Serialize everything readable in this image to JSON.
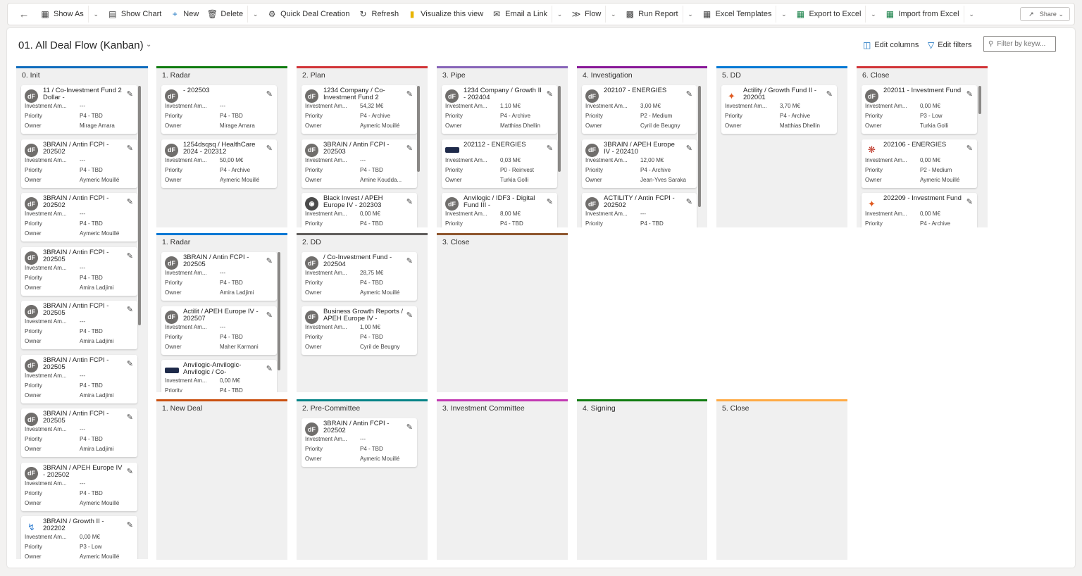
{
  "toolbar": {
    "items": [
      {
        "icon": "show-as-icon",
        "label": "Show As",
        "chevron": true
      },
      {
        "icon": "chart-icon",
        "label": "Show Chart"
      },
      {
        "icon": "plus-icon",
        "label": "New"
      },
      {
        "icon": "delete-icon",
        "label": "Delete",
        "chevron": true
      },
      {
        "icon": "quick-create-icon",
        "label": "Quick Deal Creation"
      },
      {
        "icon": "refresh-icon",
        "label": "Refresh"
      },
      {
        "icon": "powerbi-icon",
        "label": "Visualize this view"
      },
      {
        "icon": "mail-icon",
        "label": "Email a Link",
        "chevron": true
      },
      {
        "icon": "flow-icon",
        "label": "Flow",
        "chevron": true
      },
      {
        "icon": "report-icon",
        "label": "Run Report",
        "chevron": true
      },
      {
        "icon": "excel-template-icon",
        "label": "Excel Templates",
        "chevron": true
      },
      {
        "icon": "excel-export-icon",
        "label": "Export to Excel",
        "chevron": true
      },
      {
        "icon": "excel-import-icon",
        "label": "Import from Excel",
        "chevron": true
      }
    ],
    "share": "Share"
  },
  "view": {
    "title": "01. All Deal Flow (Kanban)",
    "edit_columns": "Edit columns",
    "edit_filters": "Edit filters",
    "filter_placeholder": "Filter by keyw..."
  },
  "labels": {
    "investment": "Investment Am...",
    "investment_long": "Investment Amo...",
    "priority": "Priority",
    "owner": "Owner"
  },
  "columns": [
    {
      "name": "0. Init",
      "color": "#0f6cbd",
      "cards": [
        {
          "title": "11 / Co-Investment Fund 2 Dollar -",
          "amount": "---",
          "priority": "P4 - TBD",
          "owner": "Mirage Amara",
          "logo": "df"
        },
        {
          "title": "3BRAIN / Antin FCPI - 202502",
          "amount": "---",
          "priority": "P4 - TBD",
          "owner": "Aymeric Mouillé",
          "logo": "df"
        },
        {
          "title": "3BRAIN / Antin FCPI - 202502",
          "amount": "---",
          "priority": "P4 - TBD",
          "owner": "Aymeric Mouillé",
          "logo": "df"
        },
        {
          "title": "3BRAIN / Antin FCPI - 202505",
          "amount": "---",
          "priority": "P4 - TBD",
          "owner": "Amira Ladjimi",
          "logo": "df"
        },
        {
          "title": "3BRAIN / Antin FCPI - 202505",
          "amount": "---",
          "priority": "P4 - TBD",
          "owner": "Amira Ladjimi",
          "logo": "df"
        },
        {
          "title": "3BRAIN / Antin FCPI - 202505",
          "amount": "---",
          "priority": "P4 - TBD",
          "owner": "Amira Ladjimi",
          "logo": "df"
        },
        {
          "title": "3BRAIN / Antin FCPI - 202505",
          "amount": "---",
          "priority": "P4 - TBD",
          "owner": "Amira Ladjimi",
          "logo": "df"
        },
        {
          "title": "3BRAIN / APEH Europe IV - 202502",
          "amount": "---",
          "priority": "P4 - TBD",
          "owner": "Aymeric Mouillé",
          "logo": "df"
        },
        {
          "title": "3BRAIN / Growth II - 202202",
          "amount": "0,00 M€",
          "priority": "P3 - Low",
          "owner": "Aymeric Mouillé",
          "logo": "blue"
        }
      ]
    },
    {
      "name": "1. Radar",
      "color": "#107c10",
      "cards": [
        {
          "title": "- 202503",
          "amount": "---",
          "priority": "P4 - TBD",
          "owner": "Mirage Amara",
          "logo": "df"
        },
        {
          "title": "1254dsqsq / HealthCare 2024 - 202312",
          "amount": "50,00 M€",
          "priority": "P4 - Archive",
          "owner": "Aymeric Mouillé",
          "logo": "df"
        }
      ]
    },
    {
      "name": "2. Plan",
      "color": "#d13438",
      "cards": [
        {
          "title": "1234 Company / Co-Investment Fund 2",
          "amount": "54,32 M€",
          "priority": "P4 - Archive",
          "owner": "Aymeric Mouillé",
          "logo": "df"
        },
        {
          "title": "3BRAIN / Antin FCPI - 202503",
          "amount": "---",
          "priority": "P4 - TBD",
          "owner": "Amine Koudda...",
          "logo": "df"
        },
        {
          "title": "Black Invest / APEH Europe IV - 202303",
          "amount": "0,00 M€",
          "priority": "P4 - TBD",
          "owner": "",
          "logo": "tree"
        }
      ]
    },
    {
      "name": "3. Pipe",
      "color": "#8764b8",
      "cards": [
        {
          "title": "1234 Company / Growth II - 202404",
          "amount": "1,10 M€",
          "priority": "P4 - Archive",
          "owner": "Matthias Dhellin",
          "logo": "df"
        },
        {
          "title": "202112 - ENERGIES",
          "amount": "0,03 M€",
          "priority": "P0 - Reinvest",
          "owner": "Turkia Golli",
          "logo": "dark"
        },
        {
          "title": "Anvilogic / IDF3 - Digital Fund III -",
          "amount": "8,00 M€",
          "priority": "P4 - TBD",
          "owner": "",
          "logo": "df"
        }
      ]
    },
    {
      "name": "4. Investigation",
      "color": "#881798",
      "cards": [
        {
          "title": "202107 - ENERGIES",
          "amount": "3,00 M€",
          "priority": "P2 - Medium",
          "owner": "Cyril de Beugny",
          "logo": "df"
        },
        {
          "title": "3BRAIN / APEH Europe IV - 202410",
          "amount": "12,00 M€",
          "priority": "P4 - Archive",
          "owner": "Jean-Yves Saraka",
          "logo": "df"
        },
        {
          "title": "ACTILITY / Antin FCPI - 202502",
          "amount": "---",
          "priority": "P4 - TBD",
          "owner": "",
          "logo": "df"
        }
      ]
    },
    {
      "name": "5. DD",
      "color": "#0078d4",
      "cards": [
        {
          "title": "Actility / Growth Fund II - 202001",
          "amount": "3,70 M€",
          "priority": "P4 - Archive",
          "owner": "Matthias Dhellin",
          "logo": "orange"
        }
      ]
    },
    {
      "name": "6. Close",
      "color": "#d13438",
      "cards": [
        {
          "title": "202011 - Investment Fund",
          "amount": "0,00 M€",
          "priority": "P3 - Low",
          "owner": "Turkia Golli",
          "logo": "df"
        },
        {
          "title": "202106 - ENERGIES",
          "amount": "0,00 M€",
          "priority": "P2 - Medium",
          "owner": "Aymeric Mouillé",
          "logo": "multi"
        },
        {
          "title": "202209 - Investment Fund",
          "amount": "0,00 M€",
          "priority": "P4 - Archive",
          "owner": "",
          "logo": "orange"
        }
      ]
    },
    {
      "name": "1. Radar",
      "color": "#0078d4",
      "cards": [
        {
          "title": "3BRAIN / Antin FCPI - 202505",
          "amount": "---",
          "priority": "P4 - TBD",
          "owner": "Amira Ladjimi",
          "logo": "df"
        },
        {
          "title": "Actilit / APEH Europe IV - 202507",
          "amount": "---",
          "priority": "P4 - TBD",
          "owner": "Maher Karmani",
          "logo": "df"
        },
        {
          "title": "Anvilogic-Anvilogic-Anvilogic / Co-",
          "amount": "0,00 M€",
          "priority": "P4 - TBD",
          "owner": "",
          "logo": "dark"
        }
      ]
    },
    {
      "name": "2. DD",
      "color": "#605e5c",
      "cards": [
        {
          "title": "/ Co-Investment Fund - 202504",
          "amount": "28,75 M€",
          "priority": "P4 - TBD",
          "owner": "Aymeric Mouillé",
          "logo": "df"
        },
        {
          "title": "Business Growth Reports / APEH Europe IV -",
          "amount": "1,00 M€",
          "priority": "P4 - TBD",
          "owner": "Cyril de Beugny",
          "logo": "df"
        }
      ]
    },
    {
      "name": "3. Close",
      "color": "#8e562e",
      "cards": []
    },
    {
      "name": "1. New Deal",
      "color": "#ca5010",
      "cards": []
    },
    {
      "name": "2. Pre-Committee",
      "color": "#038387",
      "cards": [
        {
          "title": "3BRAIN / Antin FCPI - 202502",
          "amount": "---",
          "priority": "P4 - TBD",
          "owner": "Aymeric Mouillé",
          "logo": "df"
        }
      ]
    },
    {
      "name": "3. Investment Committee",
      "color": "#c239b3",
      "cards": []
    },
    {
      "name": "4. Signing",
      "color": "#107c10",
      "cards": []
    },
    {
      "name": "5. Close",
      "color": "#ffaa44",
      "cards": []
    }
  ]
}
